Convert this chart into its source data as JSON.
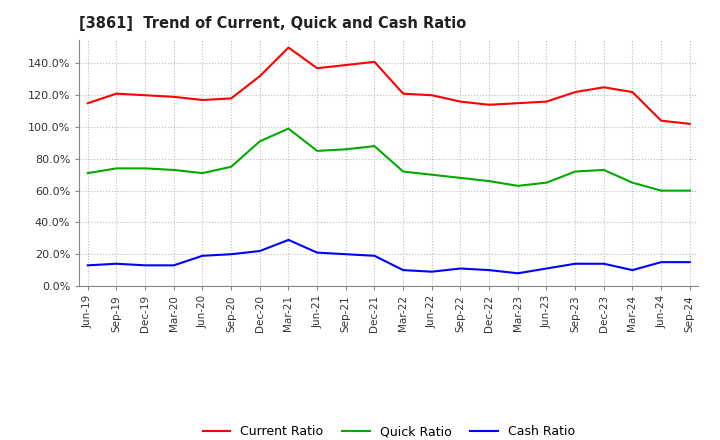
{
  "title": "[3861]  Trend of Current, Quick and Cash Ratio",
  "labels": [
    "Jun-19",
    "Sep-19",
    "Dec-19",
    "Mar-20",
    "Jun-20",
    "Sep-20",
    "Dec-20",
    "Mar-21",
    "Jun-21",
    "Sep-21",
    "Dec-21",
    "Mar-22",
    "Jun-22",
    "Sep-22",
    "Dec-22",
    "Mar-23",
    "Jun-23",
    "Sep-23",
    "Dec-23",
    "Mar-24",
    "Jun-24",
    "Sep-24"
  ],
  "current_ratio": [
    115.0,
    121.0,
    120.0,
    119.0,
    117.0,
    118.0,
    132.0,
    150.0,
    137.0,
    139.0,
    141.0,
    121.0,
    120.0,
    116.0,
    114.0,
    115.0,
    116.0,
    122.0,
    125.0,
    122.0,
    104.0,
    102.0
  ],
  "quick_ratio": [
    71.0,
    74.0,
    74.0,
    73.0,
    71.0,
    75.0,
    91.0,
    99.0,
    85.0,
    86.0,
    88.0,
    72.0,
    70.0,
    68.0,
    66.0,
    63.0,
    65.0,
    72.0,
    73.0,
    65.0,
    60.0,
    60.0
  ],
  "cash_ratio": [
    13.0,
    14.0,
    13.0,
    13.0,
    19.0,
    20.0,
    22.0,
    29.0,
    21.0,
    20.0,
    19.0,
    10.0,
    9.0,
    11.0,
    10.0,
    8.0,
    11.0,
    14.0,
    14.0,
    10.0,
    15.0,
    15.0
  ],
  "current_color": "#FF0000",
  "quick_color": "#00AA00",
  "cash_color": "#0000FF",
  "ylim": [
    0.0,
    155.0
  ],
  "yticks": [
    0.0,
    20.0,
    40.0,
    60.0,
    80.0,
    100.0,
    120.0,
    140.0
  ],
  "background_color": "#FFFFFF",
  "grid_color": "#BBBBBB",
  "legend_labels": [
    "Current Ratio",
    "Quick Ratio",
    "Cash Ratio"
  ]
}
